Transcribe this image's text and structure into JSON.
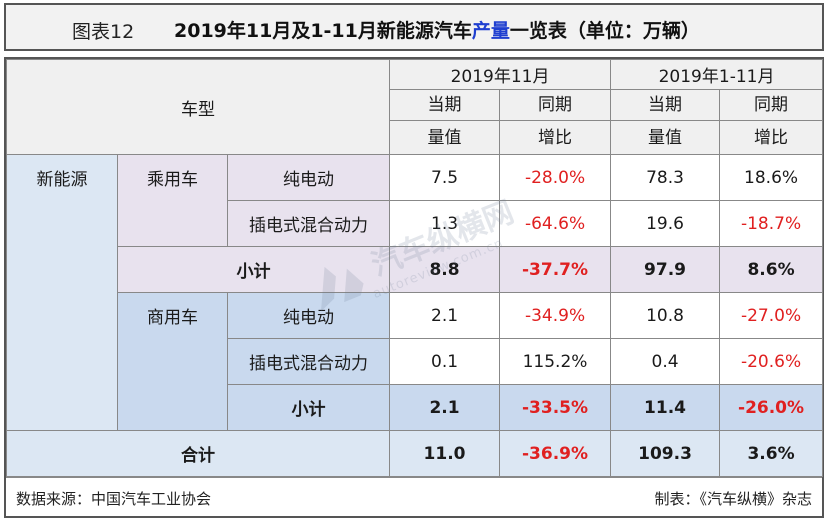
{
  "header": {
    "figure_label": "图表12",
    "title_prefix": "2019年11月及1-11月新能源汽车",
    "title_highlight": "产量",
    "title_suffix": "一览表（单位：万辆）",
    "highlight_color": "#1f3fd0"
  },
  "columns": {
    "vehicle_type": "车型",
    "period_month": "2019年11月",
    "period_ytd": "2019年1-11月",
    "current_line1": "当期",
    "current_line2": "量值",
    "yoy_line1": "同期",
    "yoy_line2": "增比"
  },
  "categories": {
    "nev": "新能源",
    "passenger": "乘用车",
    "commercial": "商用车",
    "bev": "纯电动",
    "phev": "插电式混合动力",
    "subtotal": "小计",
    "total": "合计"
  },
  "rows": {
    "passenger_bev": {
      "m_val": "7.5",
      "m_yoy": "-28.0%",
      "y_val": "78.3",
      "y_yoy": "18.6%"
    },
    "passenger_phev": {
      "m_val": "1.3",
      "m_yoy": "-64.6%",
      "y_val": "19.6",
      "y_yoy": "-18.7%"
    },
    "passenger_subtotal": {
      "m_val": "8.8",
      "m_yoy": "-37.7%",
      "y_val": "97.9",
      "y_yoy": "8.6%"
    },
    "commercial_bev": {
      "m_val": "2.1",
      "m_yoy": "-34.9%",
      "y_val": "10.8",
      "y_yoy": "-27.0%"
    },
    "commercial_phev": {
      "m_val": "0.1",
      "m_yoy": "115.2%",
      "y_val": "0.4",
      "y_yoy": "-20.6%"
    },
    "commercial_subtotal": {
      "m_val": "2.1",
      "m_yoy": "-33.5%",
      "y_val": "11.4",
      "y_yoy": "-26.0%"
    },
    "total": {
      "m_val": "11.0",
      "m_yoy": "-36.9%",
      "y_val": "109.3",
      "y_yoy": "3.6%"
    }
  },
  "footer": {
    "source": "数据来源：中国汽车工业协会",
    "maker": "制表：《汽车纵横》杂志"
  },
  "watermark": {
    "main": "汽车纵横网",
    "sub": "autoreview.com.cn"
  },
  "colors": {
    "negative": "#e02020",
    "passenger_bg": "#e8e2ee",
    "commercial_bg": "#c9d9ee",
    "nev_bg": "#dce7f3"
  }
}
